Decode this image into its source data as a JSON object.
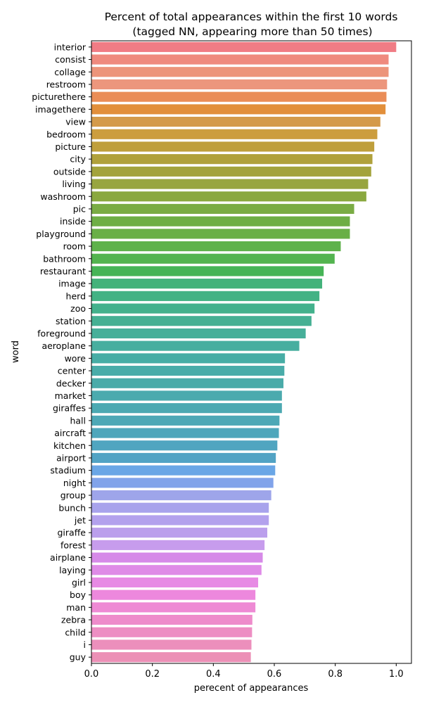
{
  "chart_data": {
    "type": "bar",
    "orientation": "horizontal",
    "title_line1": "Percent of total appearances within the first 10 words",
    "title_line2": "(tagged NN, appearing more than 50 times)",
    "xlabel": "perecent of appearances",
    "ylabel": "word",
    "xlim": [
      0,
      1.05
    ],
    "xticks": [
      0.0,
      0.2,
      0.4,
      0.6,
      0.8,
      1.0
    ],
    "xtick_labels": [
      "0.0",
      "0.2",
      "0.4",
      "0.6",
      "0.8",
      "1.0"
    ],
    "grid": false,
    "categories": [
      "interior",
      "consist",
      "collage",
      "restroom",
      "picturethere",
      "imagethere",
      "view",
      "bedroom",
      "picture",
      "city",
      "outside",
      "living",
      "washroom",
      "pic",
      "inside",
      "playground",
      "room",
      "bathroom",
      "restaurant",
      "image",
      "herd",
      "zoo",
      "station",
      "foreground",
      "aeroplane",
      "wore",
      "center",
      "decker",
      "market",
      "giraffes",
      "hall",
      "aircraft",
      "kitchen",
      "airport",
      "stadium",
      "night",
      "group",
      "bunch",
      "jet",
      "giraffe",
      "forest",
      "airplane",
      "laying",
      "girl",
      "boy",
      "man",
      "zebra",
      "child",
      "i",
      "guy"
    ],
    "values": [
      1.0,
      0.975,
      0.975,
      0.97,
      0.968,
      0.965,
      0.948,
      0.938,
      0.928,
      0.922,
      0.918,
      0.908,
      0.902,
      0.862,
      0.848,
      0.848,
      0.818,
      0.798,
      0.762,
      0.757,
      0.748,
      0.732,
      0.722,
      0.703,
      0.682,
      0.635,
      0.633,
      0.63,
      0.625,
      0.625,
      0.617,
      0.615,
      0.61,
      0.605,
      0.603,
      0.597,
      0.59,
      0.582,
      0.582,
      0.577,
      0.568,
      0.562,
      0.558,
      0.547,
      0.538,
      0.538,
      0.528,
      0.527,
      0.525,
      0.523
    ],
    "colors": [
      "#f07c85",
      "#ef8a7e",
      "#ec947a",
      "#ec967d",
      "#ea8d57",
      "#e28f3b",
      "#d49a4a",
      "#cc9d3e",
      "#bf9f3c",
      "#b0a13b",
      "#a3a33c",
      "#98a53f",
      "#8aa83f",
      "#7aac44",
      "#6eae45",
      "#69af46",
      "#5eb24b",
      "#53b44f",
      "#46b456",
      "#43b27a",
      "#43b284",
      "#43b18c",
      "#45b093",
      "#46af99",
      "#47ae9f",
      "#47ada5",
      "#49aca9",
      "#4aaba9",
      "#4baaae",
      "#4ca9b2",
      "#4da8b6",
      "#4ea6bb",
      "#50a5c0",
      "#52a3c4",
      "#6aa6e6",
      "#81a3ea",
      "#9ea5ea",
      "#a8a3ec",
      "#b3a1ed",
      "#bb9fec",
      "#c79ced",
      "#d68ae8",
      "#df8be7",
      "#e78ae4",
      "#ed88dd",
      "#ee8ad4",
      "#ee8ccb",
      "#ed8ec3",
      "#ec8fbc",
      "#ec90b6"
    ]
  }
}
